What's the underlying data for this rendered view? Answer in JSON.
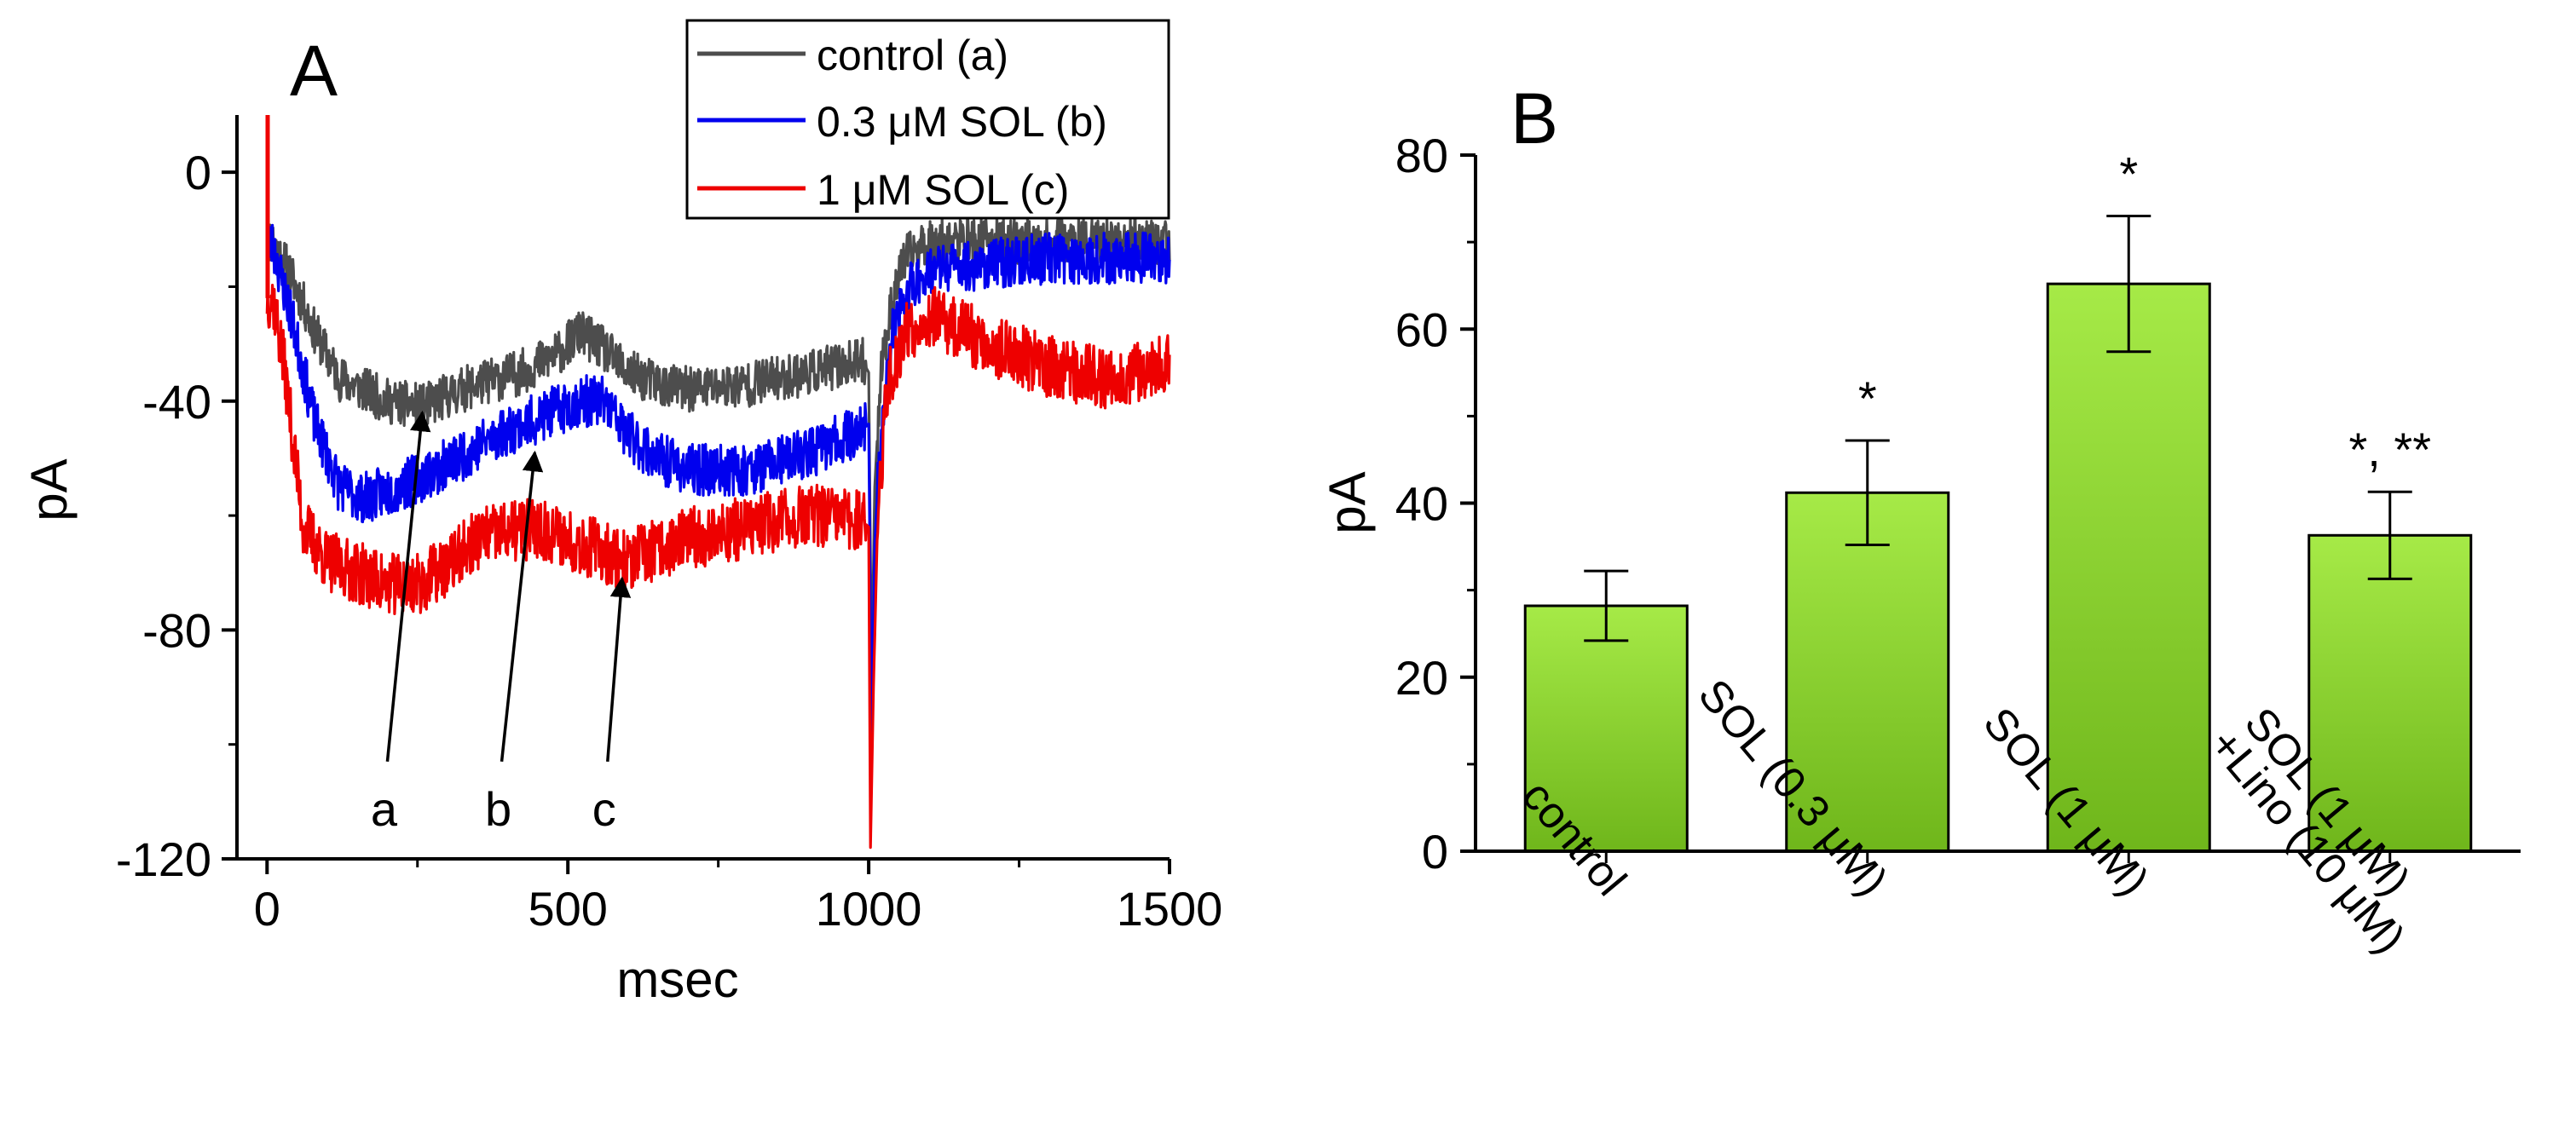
{
  "chart_data": [
    {
      "type": "line",
      "panel_label": "A",
      "title": "",
      "xlabel": "msec",
      "ylabel": "pA",
      "xlim": [
        -50,
        1500
      ],
      "ylim": [
        -120,
        10
      ],
      "xticks": [
        0,
        500,
        1000,
        1500
      ],
      "xtick_labels": [
        "0",
        "500",
        "1000",
        "1500"
      ],
      "yticks": [
        0,
        -40,
        -80,
        -120
      ],
      "ytick_labels": [
        "0",
        "-40",
        "-80",
        "-120"
      ],
      "grid": false,
      "legend_position": "top-right",
      "series": [
        {
          "name": "control (a)",
          "color": "#4d4d4d",
          "noise": 4,
          "seed": 11,
          "x": [
            0,
            10,
            40,
            80,
            120,
            200,
            260,
            300,
            350,
            420,
            480,
            520,
            560,
            600,
            650,
            700,
            800,
            900,
            990,
            1000,
            1005,
            1010,
            1020,
            1040,
            1060,
            1100,
            1200,
            1300,
            1400,
            1500
          ],
          "y": [
            -12,
            -12,
            -18,
            -28,
            -36,
            -40,
            -41,
            -39,
            -37,
            -35,
            -32,
            -28,
            -31,
            -35,
            -37,
            -38,
            -37,
            -35,
            -33,
            -35,
            -90,
            -55,
            -35,
            -22,
            -15,
            -12,
            -12,
            -12,
            -12,
            -12
          ]
        },
        {
          "name": "0.3 μM SOL (b)",
          "color": "#0000ee",
          "noise": 4.5,
          "seed": 23,
          "x": [
            0,
            10,
            40,
            80,
            120,
            160,
            220,
            300,
            380,
            450,
            520,
            560,
            600,
            650,
            700,
            800,
            900,
            990,
            1000,
            1005,
            1010,
            1020,
            1040,
            1070,
            1100,
            1200,
            1300,
            1400,
            1500
          ],
          "y": [
            -12,
            -13,
            -25,
            -44,
            -55,
            -57,
            -55,
            -51,
            -46,
            -43,
            -40,
            -40,
            -46,
            -50,
            -52,
            -52,
            -49,
            -45,
            -44,
            -100,
            -65,
            -45,
            -28,
            -20,
            -17,
            -16,
            -15,
            -15,
            -15
          ]
        },
        {
          "name": "1 μM SOL (c)",
          "color": "#ee0000",
          "noise": 5.5,
          "seed": 37,
          "x": [
            0,
            10,
            30,
            60,
            100,
            150,
            200,
            250,
            300,
            350,
            400,
            450,
            500,
            550,
            600,
            650,
            700,
            800,
            900,
            990,
            1000,
            1003,
            1008,
            1015,
            1030,
            1060,
            1100,
            1200,
            1300,
            1400,
            1500
          ],
          "y": [
            -22,
            -22,
            -35,
            -62,
            -68,
            -70,
            -72,
            -72,
            -69,
            -64,
            -63,
            -62,
            -64,
            -66,
            -68,
            -66,
            -64,
            -62,
            -60,
            -61,
            -62,
            -118,
            -90,
            -60,
            -38,
            -28,
            -25,
            -30,
            -34,
            -36,
            -33
          ]
        }
      ],
      "spikes": [
        {
          "x": 1,
          "y_from": -22,
          "y_to": 10,
          "color": "#ee0000"
        }
      ],
      "annotations": [
        {
          "text": "a",
          "from": [
            200,
            -103
          ],
          "to": [
            258,
            -42
          ]
        },
        {
          "text": "b",
          "from": [
            390,
            -103
          ],
          "to": [
            445,
            -49
          ]
        },
        {
          "text": "c",
          "from": [
            566,
            -103
          ],
          "to": [
            590,
            -71
          ]
        }
      ]
    },
    {
      "type": "bar",
      "panel_label": "B",
      "title": "",
      "xlabel": "",
      "ylabel": "pA",
      "ylim": [
        0,
        80
      ],
      "yticks": [
        0,
        20,
        40,
        60,
        80
      ],
      "ytick_labels": [
        "0",
        "20",
        "40",
        "60",
        "80"
      ],
      "grid": false,
      "bar_color_top": "#a6ea47",
      "bar_color_bottom": "#6fb61b",
      "categories": [
        [
          "control"
        ],
        [
          "SOL (0.3 μM)"
        ],
        [
          "SOL (1 μM)"
        ],
        [
          "SOL (1 μM)",
          "+Lino (10 μM)"
        ]
      ],
      "values": [
        28.2,
        41.2,
        65.2,
        36.3
      ],
      "errors": [
        4.0,
        6.0,
        7.8,
        5.0
      ],
      "significance": [
        "",
        "*",
        "*",
        "*, **"
      ]
    }
  ]
}
